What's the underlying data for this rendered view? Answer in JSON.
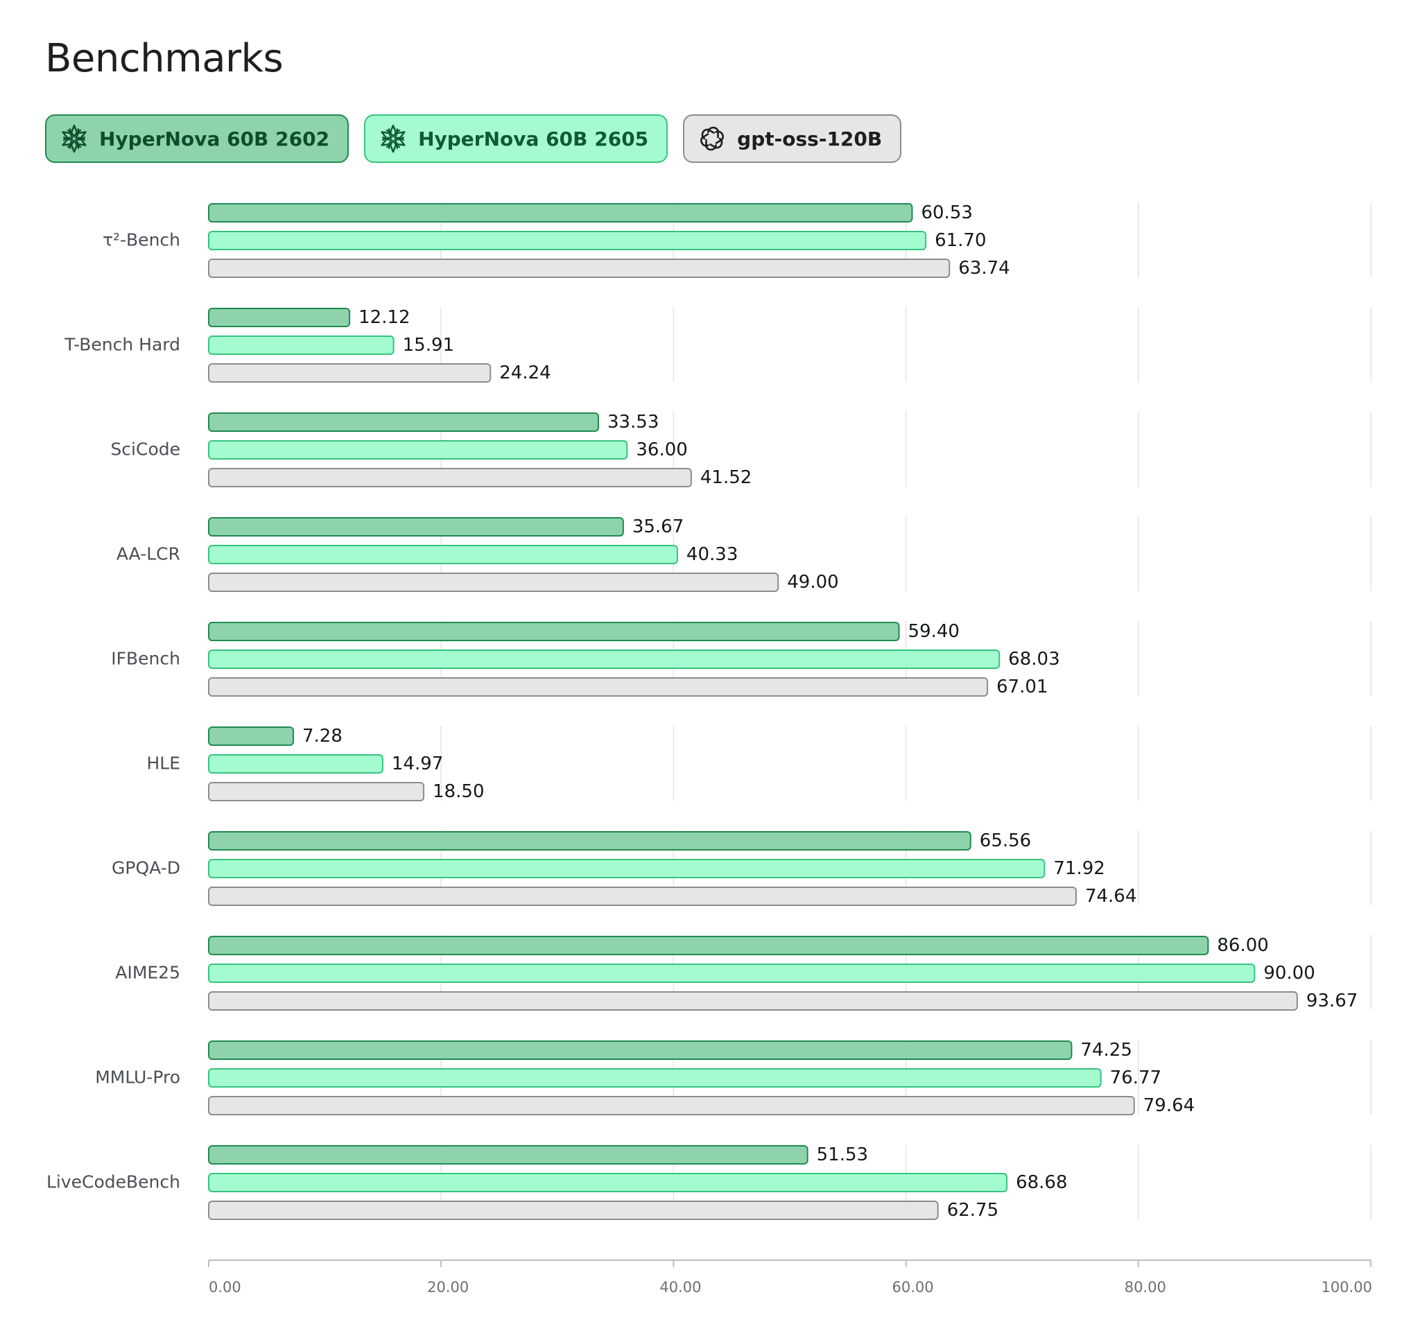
{
  "page": {
    "title": "Benchmarks"
  },
  "legend": [
    {
      "label": "HyperNova 60B 2602",
      "icon": "snowflake-icon",
      "fill": "#8fd3ac",
      "stroke": "#1f8a51",
      "text": "#0f4d2a"
    },
    {
      "label": "HyperNova 60B 2605",
      "icon": "snowflake-icon",
      "fill": "#a5fbd0",
      "stroke": "#35c47f",
      "text": "#0f5a32"
    },
    {
      "label": "gpt-oss-120B",
      "icon": "openai-icon",
      "fill": "#e6e6e6",
      "stroke": "#8c8c8c",
      "text": "#1e1e1e"
    }
  ],
  "chart_data": {
    "type": "bar",
    "orientation": "horizontal",
    "categories": [
      "τ²-Bench",
      "T-Bench Hard",
      "SciCode",
      "AA-LCR",
      "IFBench",
      "HLE",
      "GPQA-D",
      "AIME25",
      "MMLU-Pro",
      "LiveCodeBench"
    ],
    "series": [
      {
        "name": "HyperNova 60B 2602",
        "values": [
          60.53,
          12.12,
          33.53,
          35.67,
          59.4,
          7.28,
          65.56,
          86.0,
          74.25,
          51.53
        ],
        "labels": [
          "60.53",
          "12.12",
          "33.53",
          "35.67",
          "59.40",
          "7.28",
          "65.56",
          "86.00",
          "74.25",
          "51.53"
        ]
      },
      {
        "name": "HyperNova 60B 2605",
        "values": [
          61.7,
          15.91,
          36.0,
          40.33,
          68.03,
          14.97,
          71.92,
          90.0,
          76.77,
          68.68
        ],
        "labels": [
          "61.70",
          "15.91",
          "36.00",
          "40.33",
          "68.03",
          "14.97",
          "71.92",
          "90.00",
          "76.77",
          "68.68"
        ]
      },
      {
        "name": "gpt-oss-120B",
        "values": [
          63.74,
          24.24,
          41.52,
          49.0,
          67.01,
          18.5,
          74.64,
          93.67,
          79.64,
          62.75
        ],
        "labels": [
          "63.74",
          "24.24",
          "41.52",
          "49.00",
          "67.01",
          "18.50",
          "74.64",
          "93.67",
          "79.64",
          "62.75"
        ]
      }
    ],
    "xlim": [
      0,
      100
    ],
    "xticks": [
      0,
      20,
      40,
      60,
      80,
      100
    ],
    "xtick_labels": [
      "0.00",
      "20.00",
      "40.00",
      "60.00",
      "80.00",
      "100.00"
    ],
    "grid": true,
    "legend_position": "top-left"
  }
}
